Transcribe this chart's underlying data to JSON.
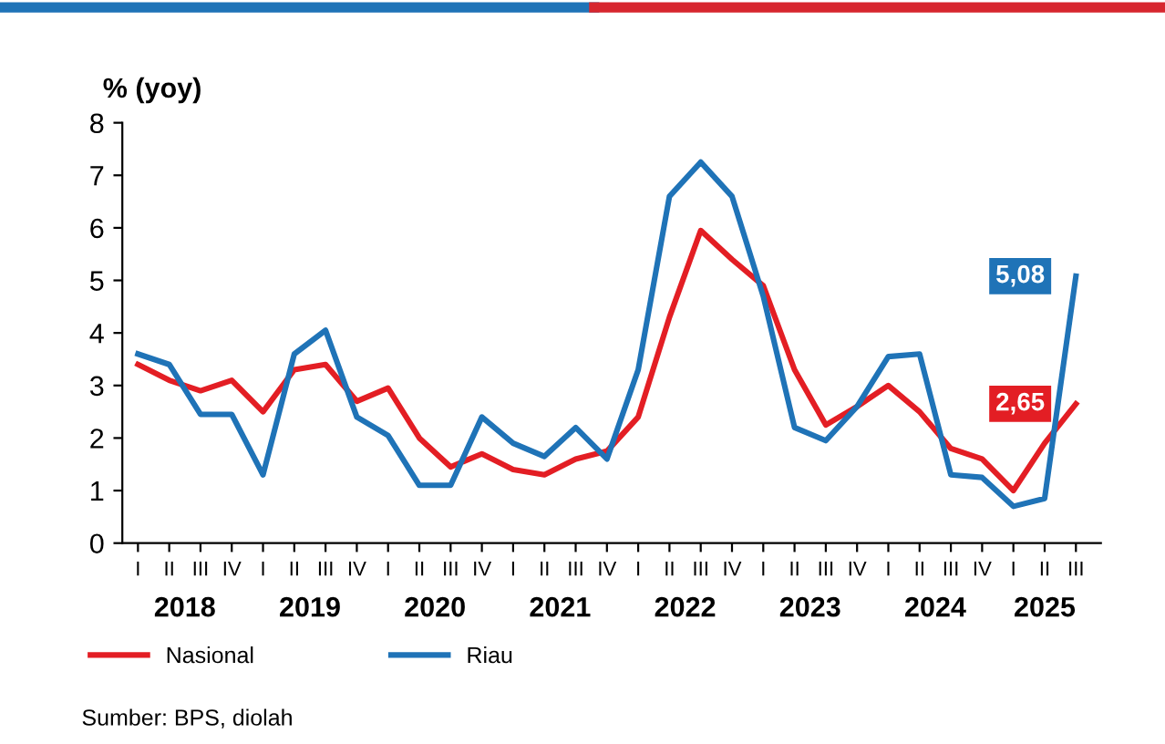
{
  "chart_data": {
    "type": "line",
    "ylabel": "% (yoy)",
    "categories": [
      "I",
      "II",
      "III",
      "IV",
      "I",
      "II",
      "III",
      "IV",
      "I",
      "II",
      "III",
      "IV",
      "I",
      "II",
      "III",
      "IV",
      "I",
      "II",
      "III",
      "IV",
      "I",
      "II",
      "III",
      "IV",
      "I",
      "II",
      "III",
      "IV",
      "I",
      "II",
      "III"
    ],
    "series": [
      {
        "name": "Nasional",
        "color": "#e31e24",
        "values": [
          3.4,
          3.1,
          2.9,
          3.1,
          2.5,
          3.3,
          3.4,
          2.7,
          2.95,
          2.0,
          1.45,
          1.7,
          1.4,
          1.3,
          1.6,
          1.75,
          2.4,
          4.3,
          5.95,
          5.4,
          4.9,
          3.3,
          2.25,
          2.6,
          3.0,
          2.5,
          1.8,
          1.6,
          1.0,
          1.9,
          2.65
        ],
        "value_labels": [
          null,
          null,
          null,
          null,
          null,
          null,
          null,
          null,
          null,
          null,
          null,
          null,
          null,
          null,
          null,
          null,
          null,
          null,
          null,
          null,
          null,
          null,
          null,
          null,
          null,
          null,
          null,
          null,
          null,
          null,
          "2,65"
        ]
      },
      {
        "name": "Riau",
        "color": "#1f73b7",
        "values": [
          3.6,
          3.4,
          2.45,
          2.45,
          1.3,
          3.6,
          4.05,
          2.4,
          2.05,
          1.1,
          1.1,
          2.4,
          1.9,
          1.65,
          2.2,
          1.6,
          3.3,
          6.6,
          7.25,
          6.6,
          4.7,
          2.2,
          1.95,
          2.6,
          3.55,
          3.6,
          1.3,
          1.25,
          0.7,
          0.85,
          5.08
        ],
        "value_labels": [
          null,
          null,
          null,
          null,
          null,
          null,
          null,
          null,
          null,
          null,
          null,
          null,
          null,
          null,
          null,
          null,
          null,
          null,
          null,
          null,
          null,
          null,
          null,
          null,
          null,
          null,
          null,
          null,
          null,
          null,
          "5,08"
        ]
      }
    ],
    "ylim": [
      0,
      8
    ],
    "yticks": [
      0,
      1,
      2,
      3,
      4,
      5,
      6,
      7,
      8
    ],
    "grid": false,
    "legend": "bottom left",
    "marker": "none",
    "line_style": "solid",
    "annotations": [
      "2018",
      "2019",
      "2020",
      "2021",
      "2022",
      "2023",
      "2024",
      "2025",
      "Sumber: BPS, diolah"
    ]
  }
}
